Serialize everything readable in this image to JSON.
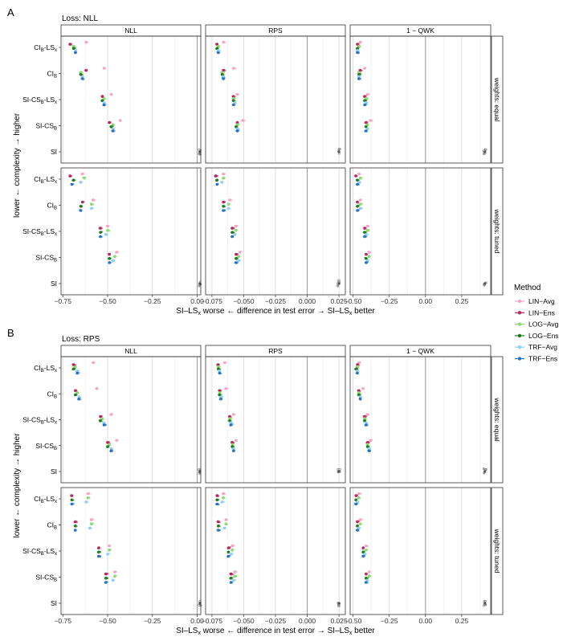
{
  "chart_data": {
    "type": "scatter",
    "sections": [
      {
        "label": "A",
        "loss_title": "Loss: NLL",
        "panels_rows": "weights"
      },
      {
        "label": "B",
        "loss_title": "Loss: RPS",
        "panels_rows": "weights"
      }
    ],
    "row_strips": [
      "weights: equal",
      "weights: tuned"
    ],
    "columns": [
      {
        "title": "NLL",
        "xlim": [
          -0.76,
          0.02
        ],
        "ticks": [
          -0.75,
          -0.5,
          -0.25,
          0.0
        ],
        "tick_labels": [
          "−0.75",
          "−0.50",
          "−0.25",
          "0.00"
        ],
        "grid_minor": [
          -0.625,
          -0.375,
          -0.125
        ]
      },
      {
        "title": "RPS",
        "xlim": [
          -0.08,
          0.03
        ],
        "ticks": [
          -0.075,
          -0.05,
          -0.025,
          0.0,
          0.025
        ],
        "tick_labels": [
          "−0.075",
          "−0.050",
          "−0.025",
          "0.000",
          "0.025"
        ],
        "grid_minor": [
          -0.0625,
          -0.0375,
          -0.0125,
          0.0125
        ]
      },
      {
        "title": "1 − QWK",
        "xlim": [
          -0.52,
          0.45
        ],
        "ticks": [
          -0.5,
          -0.25,
          0.0,
          0.25
        ],
        "tick_labels": [
          "−0.50",
          "−0.25",
          "0.00",
          "0.25"
        ],
        "grid_minor": [
          -0.375,
          -0.125,
          0.125,
          0.375
        ]
      }
    ],
    "y_categories": [
      "CI_B-LS_x",
      "CI_B",
      "SI-CS_B-LS_x",
      "SI-CS_B",
      "SI"
    ],
    "y_labels": [
      {
        "main": "CI",
        "sub": "B",
        "rest": "-LS",
        "sub2": "x"
      },
      {
        "main": "CI",
        "sub": "B",
        "rest": "",
        "sub2": ""
      },
      {
        "main": "SI-CS",
        "sub": "B",
        "rest": "-LS",
        "sub2": "x"
      },
      {
        "main": "SI-CS",
        "sub": "B",
        "rest": "",
        "sub2": ""
      },
      {
        "main": "SI",
        "sub": "",
        "rest": "",
        "sub2": ""
      }
    ],
    "ylabel": "lower ← complexity → higher",
    "xlabel": {
      "a": "SI–LS",
      "a_sub": "x",
      "b": " worse ← difference in test error → SI–LS",
      "b_sub": "x",
      "c": " better"
    },
    "legend": {
      "title": "Method",
      "entries": [
        {
          "name": "LIN−Avg",
          "color": "#f4a6c7"
        },
        {
          "name": "LIN−Ens",
          "color": "#b5285c"
        },
        {
          "name": "LOG−Avg",
          "color": "#8fd872"
        },
        {
          "name": "LOG−Ens",
          "color": "#1f7a1f"
        },
        {
          "name": "TRF−Avg",
          "color": "#8fcff5"
        },
        {
          "name": "TRF−Ens",
          "color": "#2672c0"
        }
      ]
    },
    "reference_color": "#888888",
    "series_means": {
      "A": {
        "equal": {
          "NLL": {
            "CI_B-LS_x": [
              -0.62,
              -0.71,
              -0.69,
              -0.69,
              -0.68,
              -0.68
            ],
            "CI_B": [
              -0.52,
              -0.62,
              -0.65,
              -0.65,
              -0.64,
              -0.64
            ],
            "SI-CS_B-LS_x": [
              -0.48,
              -0.53,
              -0.52,
              -0.53,
              -0.52,
              -0.52
            ],
            "SI-CS_B": [
              -0.43,
              -0.49,
              -0.47,
              -0.48,
              -0.47,
              -0.47
            ],
            "SI": [
              0.015,
              0.015,
              0.015,
              0.015,
              0.015,
              0.015
            ]
          },
          "RPS": {
            "CI_B-LS_x": [
              -0.066,
              -0.071,
              -0.07,
              -0.071,
              -0.07,
              -0.07
            ],
            "CI_B": [
              -0.058,
              -0.066,
              -0.067,
              -0.067,
              -0.066,
              -0.066
            ],
            "SI-CS_B-LS_x": [
              -0.055,
              -0.058,
              -0.058,
              -0.058,
              -0.057,
              -0.058
            ],
            "SI-CS_B": [
              -0.051,
              -0.055,
              -0.055,
              -0.056,
              -0.055,
              -0.055
            ],
            "SI": [
              0.025,
              0.025,
              0.025,
              0.025,
              0.025,
              0.025
            ]
          },
          "1 − QWK": {
            "CI_B-LS_x": [
              -0.45,
              -0.47,
              -0.46,
              -0.47,
              -0.47,
              -0.47
            ],
            "CI_B": [
              -0.42,
              -0.45,
              -0.46,
              -0.46,
              -0.46,
              -0.46
            ],
            "SI-CS_B-LS_x": [
              -0.4,
              -0.42,
              -0.41,
              -0.42,
              -0.41,
              -0.42
            ],
            "SI-CS_B": [
              -0.38,
              -0.41,
              -0.4,
              -0.41,
              -0.4,
              -0.41
            ],
            "SI": [
              0.41,
              0.41,
              0.41,
              0.41,
              0.41,
              0.41
            ]
          }
        },
        "tuned": {
          "NLL": {
            "CI_B-LS_x": [
              -0.64,
              -0.71,
              -0.63,
              -0.69,
              -0.65,
              -0.7
            ],
            "CI_B": [
              -0.58,
              -0.64,
              -0.59,
              -0.65,
              -0.59,
              -0.65
            ],
            "SI-CS_B-LS_x": [
              -0.5,
              -0.54,
              -0.5,
              -0.54,
              -0.51,
              -0.54
            ],
            "SI-CS_B": [
              -0.45,
              -0.49,
              -0.46,
              -0.49,
              -0.47,
              -0.49
            ],
            "SI": [
              0.015,
              0.015,
              0.015,
              0.015,
              0.015,
              0.015
            ]
          },
          "RPS": {
            "CI_B-LS_x": [
              -0.066,
              -0.072,
              -0.066,
              -0.071,
              -0.067,
              -0.071
            ],
            "CI_B": [
              -0.061,
              -0.066,
              -0.062,
              -0.066,
              -0.062,
              -0.066
            ],
            "SI-CS_B-LS_x": [
              -0.056,
              -0.059,
              -0.056,
              -0.059,
              -0.057,
              -0.059
            ],
            "SI-CS_B": [
              -0.053,
              -0.056,
              -0.054,
              -0.056,
              -0.054,
              -0.056
            ],
            "SI": [
              0.025,
              0.025,
              0.025,
              0.025,
              0.025,
              0.025
            ]
          },
          "1 − QWK": {
            "CI_B-LS_x": [
              -0.46,
              -0.48,
              -0.45,
              -0.47,
              -0.46,
              -0.47
            ],
            "CI_B": [
              -0.45,
              -0.47,
              -0.45,
              -0.47,
              -0.45,
              -0.47
            ],
            "SI-CS_B-LS_x": [
              -0.4,
              -0.42,
              -0.4,
              -0.42,
              -0.41,
              -0.42
            ],
            "SI-CS_B": [
              -0.39,
              -0.41,
              -0.39,
              -0.41,
              -0.4,
              -0.41
            ],
            "SI": [
              0.41,
              0.41,
              0.41,
              0.41,
              0.41,
              0.41
            ]
          }
        }
      },
      "B": {
        "equal": {
          "NLL": {
            "CI_B-LS_x": [
              -0.58,
              -0.69,
              -0.68,
              -0.69,
              -0.67,
              -0.67
            ],
            "CI_B": [
              -0.56,
              -0.68,
              -0.67,
              -0.68,
              -0.66,
              -0.66
            ],
            "SI-CS_B-LS_x": [
              -0.48,
              -0.54,
              -0.53,
              -0.54,
              -0.52,
              -0.52
            ],
            "SI-CS_B": [
              -0.45,
              -0.5,
              -0.49,
              -0.5,
              -0.48,
              -0.48
            ],
            "SI": [
              0.015,
              0.015,
              0.015,
              0.015,
              0.015,
              0.015
            ]
          },
          "RPS": {
            "CI_B-LS_x": [
              -0.065,
              -0.07,
              -0.07,
              -0.07,
              -0.069,
              -0.069
            ],
            "CI_B": [
              -0.064,
              -0.069,
              -0.069,
              -0.069,
              -0.068,
              -0.068
            ],
            "SI-CS_B-LS_x": [
              -0.058,
              -0.061,
              -0.061,
              -0.061,
              -0.06,
              -0.06
            ],
            "SI-CS_B": [
              -0.056,
              -0.059,
              -0.059,
              -0.059,
              -0.058,
              -0.058
            ],
            "SI": [
              0.025,
              0.025,
              0.025,
              0.025,
              0.025,
              0.025
            ]
          },
          "1 − QWK": {
            "CI_B-LS_x": [
              -0.46,
              -0.47,
              -0.47,
              -0.48,
              -0.47,
              -0.47
            ],
            "CI_B": [
              -0.43,
              -0.46,
              -0.46,
              -0.46,
              -0.45,
              -0.45
            ],
            "SI-CS_B-LS_x": [
              -0.4,
              -0.42,
              -0.42,
              -0.42,
              -0.41,
              -0.41
            ],
            "SI-CS_B": [
              -0.38,
              -0.4,
              -0.4,
              -0.4,
              -0.39,
              -0.39
            ],
            "SI": [
              0.41,
              0.41,
              0.41,
              0.41,
              0.41,
              0.41
            ]
          }
        },
        "tuned": {
          "NLL": {
            "CI_B-LS_x": [
              -0.61,
              -0.7,
              -0.61,
              -0.7,
              -0.62,
              -0.7
            ],
            "CI_B": [
              -0.59,
              -0.68,
              -0.59,
              -0.68,
              -0.6,
              -0.68
            ],
            "SI-CS_B-LS_x": [
              -0.49,
              -0.55,
              -0.49,
              -0.55,
              -0.5,
              -0.55
            ],
            "SI-CS_B": [
              -0.46,
              -0.51,
              -0.46,
              -0.51,
              -0.47,
              -0.51
            ],
            "SI": [
              0.015,
              0.015,
              0.015,
              0.015,
              0.015,
              0.015
            ]
          },
          "RPS": {
            "CI_B-LS_x": [
              -0.066,
              -0.071,
              -0.066,
              -0.071,
              -0.067,
              -0.071
            ],
            "CI_B": [
              -0.064,
              -0.07,
              -0.064,
              -0.07,
              -0.065,
              -0.07
            ],
            "SI-CS_B-LS_x": [
              -0.059,
              -0.062,
              -0.059,
              -0.062,
              -0.06,
              -0.062
            ],
            "SI-CS_B": [
              -0.057,
              -0.06,
              -0.057,
              -0.06,
              -0.058,
              -0.06
            ],
            "SI": [
              0.025,
              0.025,
              0.025,
              0.025,
              0.025,
              0.025
            ]
          },
          "1 − QWK": {
            "CI_B-LS_x": [
              -0.46,
              -0.48,
              -0.46,
              -0.48,
              -0.47,
              -0.48
            ],
            "CI_B": [
              -0.45,
              -0.47,
              -0.45,
              -0.47,
              -0.46,
              -0.47
            ],
            "SI-CS_B-LS_x": [
              -0.41,
              -0.43,
              -0.41,
              -0.43,
              -0.42,
              -0.43
            ],
            "SI-CS_B": [
              -0.39,
              -0.41,
              -0.39,
              -0.41,
              -0.4,
              -0.41
            ],
            "SI": [
              0.41,
              0.41,
              0.41,
              0.41,
              0.41,
              0.41
            ]
          }
        }
      }
    }
  }
}
